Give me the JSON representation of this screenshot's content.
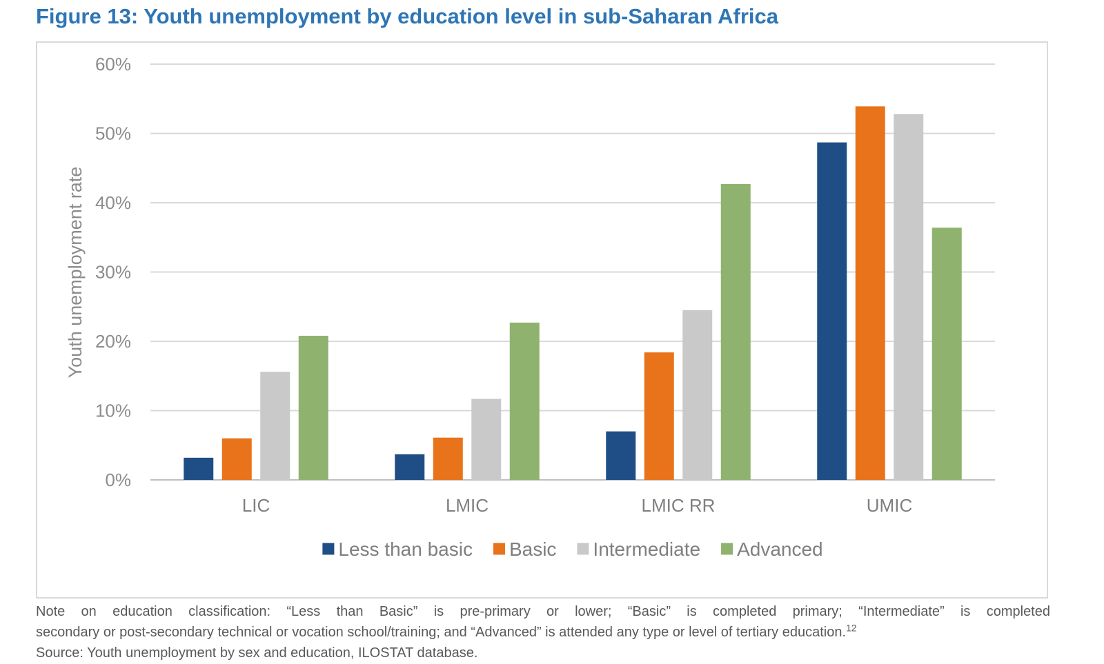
{
  "figure_title": "Figure 13: Youth unemployment by education level in sub-Saharan Africa",
  "chart_data": {
    "type": "bar",
    "categories": [
      "LIC",
      "LMIC",
      "LMIC RR",
      "UMIC"
    ],
    "series": [
      {
        "name": "Less than basic",
        "color": "#1f4e86",
        "values": [
          3.2,
          3.7,
          7.0,
          48.7
        ]
      },
      {
        "name": "Basic",
        "color": "#e8731a",
        "values": [
          6.0,
          6.1,
          18.4,
          53.9
        ]
      },
      {
        "name": "Intermediate",
        "color": "#c9c9c9",
        "values": [
          15.6,
          11.7,
          24.5,
          52.8
        ]
      },
      {
        "name": "Advanced",
        "color": "#8fb26f",
        "values": [
          20.8,
          22.7,
          42.7,
          36.4
        ]
      }
    ],
    "ylabel": "Youth unemployment rate",
    "ylim": [
      0,
      60
    ],
    "yticks": [
      0,
      10,
      20,
      30,
      40,
      50,
      60
    ],
    "ytick_labels": [
      "0%",
      "10%",
      "20%",
      "30%",
      "40%",
      "50%",
      "60%"
    ],
    "grid": true,
    "legend_position": "bottom"
  },
  "note": {
    "line1": "Note on education classification: “Less than Basic” is pre-primary or lower; “Basic” is completed primary; “Intermediate” is completed",
    "line2": "secondary or post-secondary technical or vocation school/training; and “Advanced” is attended any type or level of tertiary education.",
    "footnote_ref": "12",
    "source": "Source: Youth unemployment by sex and education, ILOSTAT database."
  }
}
